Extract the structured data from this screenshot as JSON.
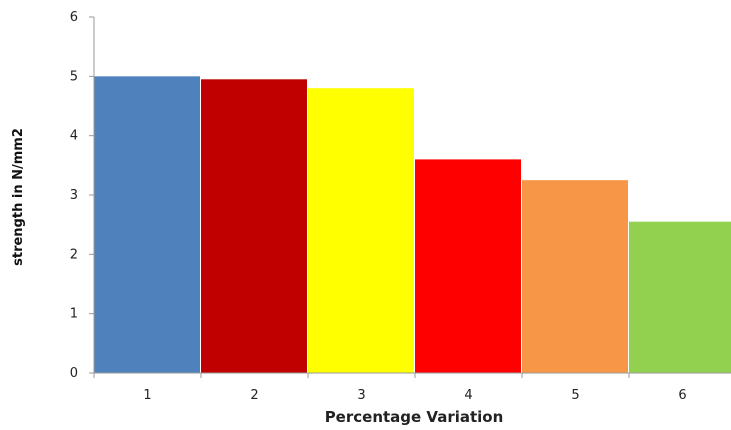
{
  "chart_data": {
    "type": "bar",
    "title": "",
    "categories": [
      "1",
      "2",
      "3",
      "4",
      "5",
      "6"
    ],
    "values": [
      5.0,
      4.95,
      4.8,
      3.6,
      3.25,
      2.55
    ],
    "colors": [
      "#4f81bd",
      "#c00000",
      "#ffff00",
      "#ff0000",
      "#f79646",
      "#92d050"
    ],
    "xlabel": "Percentage Variation",
    "ylabel": "strength in N/mm2",
    "ylim": [
      0,
      6
    ],
    "yticks": [
      "0",
      "1",
      "2",
      "3",
      "4",
      "5",
      "6"
    ],
    "grid": false,
    "legend": "none"
  }
}
